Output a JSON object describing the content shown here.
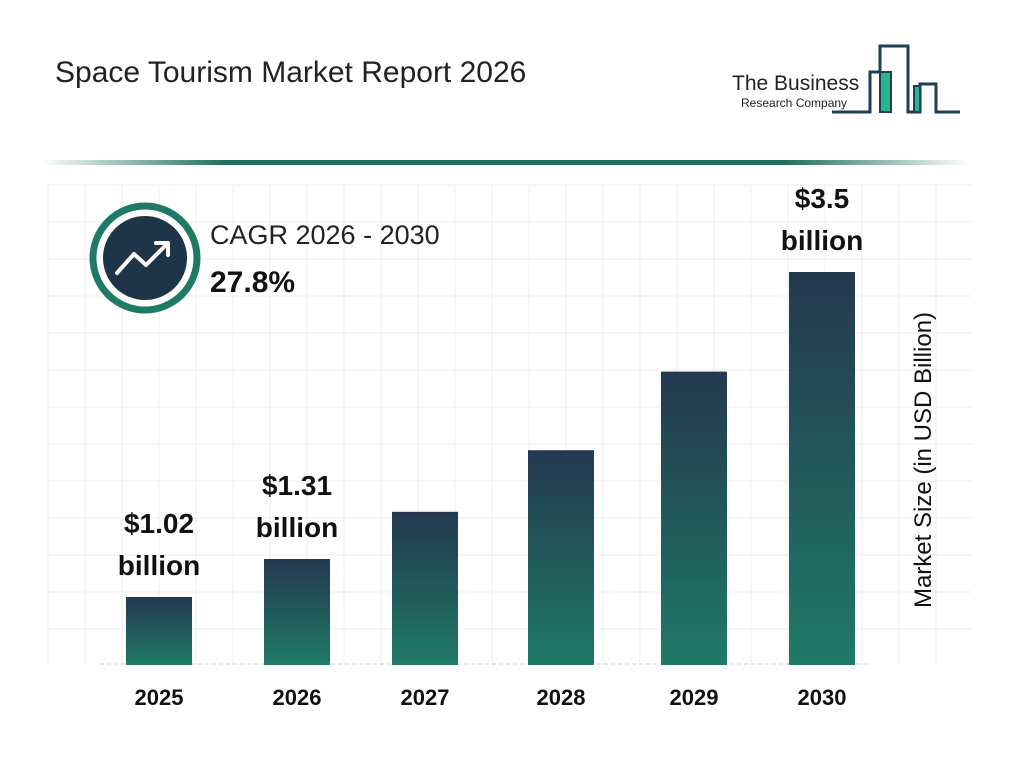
{
  "header": {
    "title": "Space Tourism Market Report 2026"
  },
  "logo": {
    "line1": "The Business",
    "line2": "Research Company"
  },
  "cagr": {
    "label": "CAGR 2026 - 2030",
    "value": "27.8%",
    "icon": "trending-up-icon"
  },
  "colors": {
    "bar_top": "#24384f",
    "bar_bottom": "#1f7a68",
    "accent": "#1e6e5f",
    "icon_bg": "#1e3448"
  },
  "chart_data": {
    "type": "bar",
    "title": "",
    "xlabel": "",
    "ylabel": "Market Size (in USD Billion)",
    "categories": [
      "2025",
      "2026",
      "2027",
      "2028",
      "2029",
      "2030"
    ],
    "values": [
      1.02,
      1.31,
      1.67,
      2.14,
      2.74,
      3.5
    ],
    "data_labels": [
      {
        "year": "2025",
        "line1": "$1.02",
        "line2": "billion"
      },
      {
        "year": "2026",
        "line1": "$1.31",
        "line2": "billion"
      },
      {
        "year": "2030",
        "line1": "$3.5",
        "line2": "billion"
      }
    ],
    "grid": true,
    "legend": "none"
  }
}
